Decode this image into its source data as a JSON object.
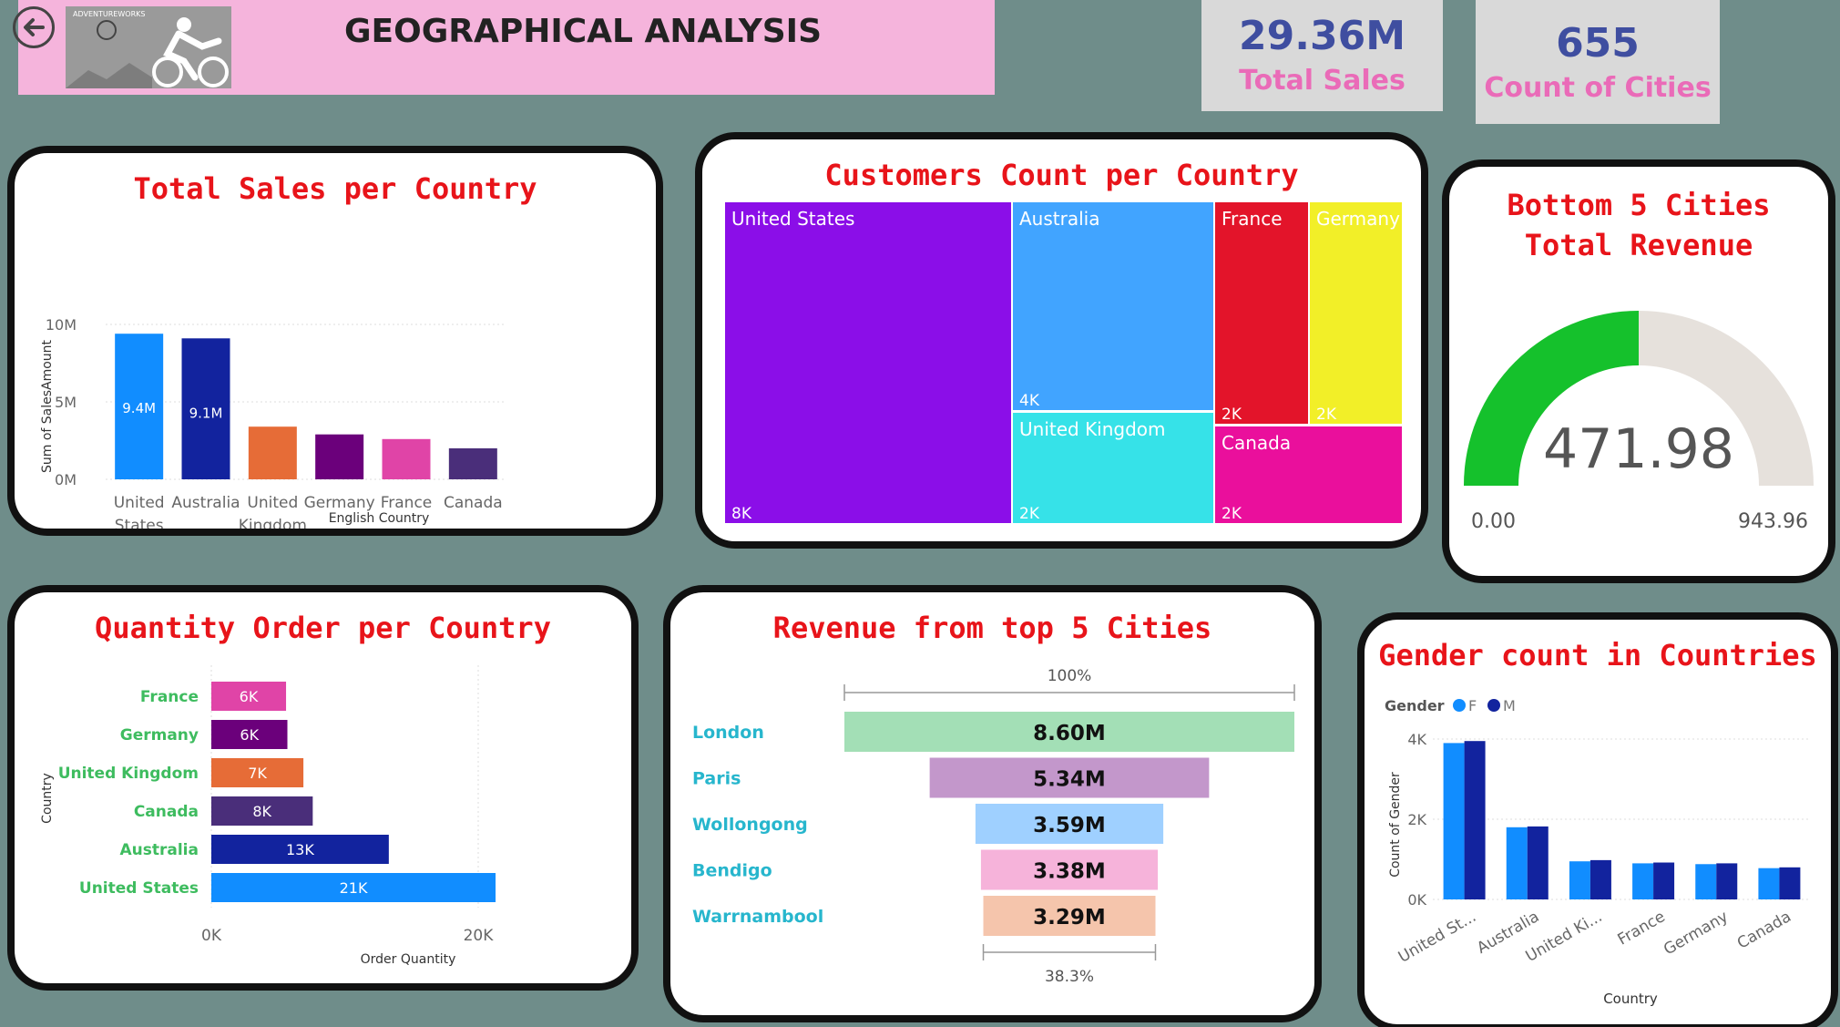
{
  "header": {
    "title": "GEOGRAPHICAL ANALYSIS",
    "logo_text": "ADVENTUREWORKS"
  },
  "kpis": [
    {
      "value": "29.36M",
      "label": "Total Sales"
    },
    {
      "value": "655",
      "label": "Count of Cities"
    }
  ],
  "colors": {
    "background": "#6f8d8a",
    "header": "#f5b4dc",
    "kpi_value": "#3f4ea0",
    "kpi_label": "#ea6bb8",
    "card_title": "#e8141a"
  },
  "chart_data": [
    {
      "id": "sales",
      "type": "bar",
      "title": "Total Sales per Country",
      "xlabel": "English Country",
      "ylabel": "Sum of SalesAmount",
      "categories": [
        [
          "United",
          "States"
        ],
        [
          "Australia"
        ],
        [
          "United",
          "Kingdom"
        ],
        [
          "Germany"
        ],
        [
          "France"
        ],
        [
          "Canada"
        ]
      ],
      "values": [
        9.4,
        9.1,
        3.4,
        2.9,
        2.6,
        2.0
      ],
      "data_labels": [
        "9.4M",
        "9.1M",
        "3.4M",
        "2.9M",
        "2.6M",
        "2.0M"
      ],
      "colors": [
        "#118dff",
        "#12239e",
        "#e66c37",
        "#6b007b",
        "#e044a7",
        "#4a2e7a"
      ],
      "ylim": [
        0,
        10
      ],
      "yticks": [
        {
          "v": 0,
          "label": "0M"
        },
        {
          "v": 5,
          "label": "5M"
        },
        {
          "v": 10,
          "label": "10M"
        }
      ],
      "grid": true
    },
    {
      "id": "customers",
      "type": "treemap",
      "title": "Customers Count per Country",
      "items": [
        {
          "name": "United States",
          "label": "8K",
          "color": "#8b0ee8"
        },
        {
          "name": "Australia",
          "label": "4K",
          "color": "#41a4ff"
        },
        {
          "name": "United Kingdom",
          "label": "2K",
          "color": "#36e2e8"
        },
        {
          "name": "France",
          "label": "2K",
          "color": "#e3142a"
        },
        {
          "name": "Germany",
          "label": "2K",
          "color": "#f2ef28"
        },
        {
          "name": "Canada",
          "label": "2K",
          "color": "#ea0f9c"
        }
      ]
    },
    {
      "id": "gauge",
      "type": "gauge",
      "title": "Bottom 5 Cities Total Revenue",
      "value": 471.98,
      "min": 0,
      "max": 943.96,
      "value_label": "471.98",
      "min_label": "0.00",
      "max_label": "943.96",
      "fill_color": "#15c12c",
      "track_color": "#e6e1dc"
    },
    {
      "id": "quantity",
      "type": "bar",
      "orientation": "horizontal",
      "title": "Quantity Order per Country",
      "xlabel": "Order Quantity",
      "ylabel": "Country",
      "categories": [
        "France",
        "Germany",
        "United Kingdom",
        "Canada",
        "Australia",
        "United States"
      ],
      "values": [
        5.6,
        5.7,
        6.9,
        7.6,
        13.3,
        21.3
      ],
      "data_labels": [
        "6K",
        "6K",
        "7K",
        "8K",
        "13K",
        "21K"
      ],
      "colors": [
        "#e044a7",
        "#6b007b",
        "#e66c37",
        "#4a2e7a",
        "#12239e",
        "#118dff"
      ],
      "xlim": [
        0,
        25
      ],
      "xticks": [
        {
          "v": 0,
          "label": "0K"
        },
        {
          "v": 20,
          "label": "20K"
        }
      ],
      "category_color": "#3ebc5f"
    },
    {
      "id": "funnel",
      "type": "funnel",
      "title": "Revenue from top 5 Cities",
      "categories": [
        "London",
        "Paris",
        "Wollongong",
        "Bendigo",
        "Warrnambool"
      ],
      "values": [
        8.6,
        5.34,
        3.59,
        3.38,
        3.29
      ],
      "data_labels": [
        "8.60M",
        "5.34M",
        "3.59M",
        "3.38M",
        "3.29M"
      ],
      "colors": [
        "#a3dfb6",
        "#c397cb",
        "#9fd0ff",
        "#f6b3da",
        "#f5c5ac"
      ],
      "top_percent": "100%",
      "bottom_percent": "38.3%",
      "category_color": "#27b6cd"
    },
    {
      "id": "gender",
      "type": "bar",
      "title": "Gender count in Countries",
      "xlabel": "Country",
      "ylabel": "Count of Gender",
      "legend_title": "Gender",
      "categories": [
        "United St...",
        "Australia",
        "United Ki...",
        "France",
        "Germany",
        "Canada"
      ],
      "series": [
        {
          "name": "F",
          "color": "#118dff",
          "values": [
            3.9,
            1.8,
            0.95,
            0.9,
            0.88,
            0.78
          ]
        },
        {
          "name": "M",
          "color": "#12239e",
          "values": [
            3.95,
            1.82,
            0.98,
            0.92,
            0.9,
            0.8
          ]
        }
      ],
      "ylim": [
        0,
        4.5
      ],
      "yticks": [
        {
          "v": 0,
          "label": "0K"
        },
        {
          "v": 2,
          "label": "2K"
        },
        {
          "v": 4,
          "label": "4K"
        }
      ],
      "legend": "top-left"
    }
  ]
}
